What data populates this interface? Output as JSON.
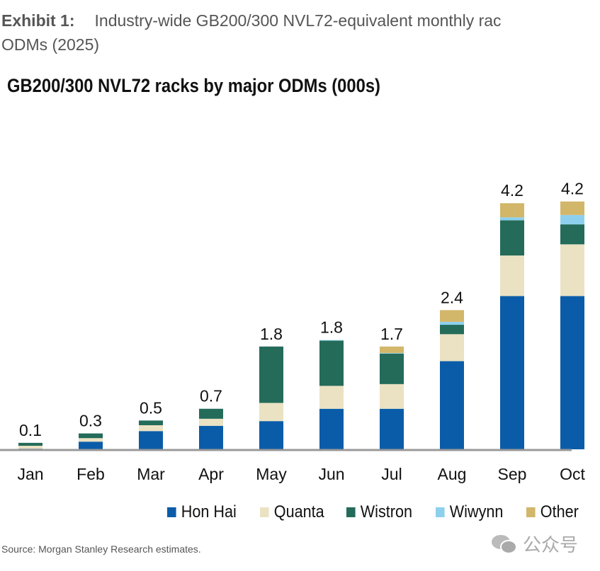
{
  "header": {
    "exhibit_label": "Exhibit 1:",
    "exhibit_title_line1": "Industry-wide GB200/300 NVL72-equivalent monthly rac",
    "exhibit_title_line2": "ODMs (2025)"
  },
  "source": "Source: Morgan Stanley Research estimates.",
  "watermark": "公众号",
  "chart_data": {
    "type": "bar",
    "stacked": true,
    "title": "GB200/300 NVL72 racks by major ODMs (000s)",
    "xlabel": "",
    "ylabel": "",
    "ylim": [
      0,
      5
    ],
    "grid": false,
    "legend_position": "bottom",
    "categories": [
      "Jan",
      "Feb",
      "Mar",
      "Apr",
      "May",
      "Jun",
      "Jul",
      "Aug",
      "Sep",
      "Oct"
    ],
    "totals_labels": [
      "0.1",
      "0.3",
      "0.5",
      "0.7",
      "1.8",
      "1.8",
      "1.7",
      "2.4",
      "4.2",
      "4.2"
    ],
    "series": [
      {
        "name": "Hon Hai",
        "color": "#0a5ca8",
        "values": [
          0.01,
          0.13,
          0.31,
          0.4,
          0.48,
          0.69,
          0.69,
          1.5,
          2.61,
          2.61
        ]
      },
      {
        "name": "Quanta",
        "color": "#ebe2c3",
        "values": [
          0.05,
          0.06,
          0.1,
          0.12,
          0.31,
          0.39,
          0.42,
          0.46,
          0.69,
          0.88
        ]
      },
      {
        "name": "Wistron",
        "color": "#246b5a",
        "values": [
          0.05,
          0.08,
          0.08,
          0.17,
          0.96,
          0.77,
          0.52,
          0.16,
          0.6,
          0.34
        ]
      },
      {
        "name": "Wiwynn",
        "color": "#8dd0ee",
        "values": [
          0,
          0,
          0,
          0,
          0,
          0.01,
          0.01,
          0.05,
          0.05,
          0.16
        ]
      },
      {
        "name": "Other",
        "color": "#d2b66a",
        "values": [
          0,
          0,
          0,
          0,
          0,
          0,
          0.11,
          0.2,
          0.24,
          0.23
        ]
      }
    ]
  }
}
